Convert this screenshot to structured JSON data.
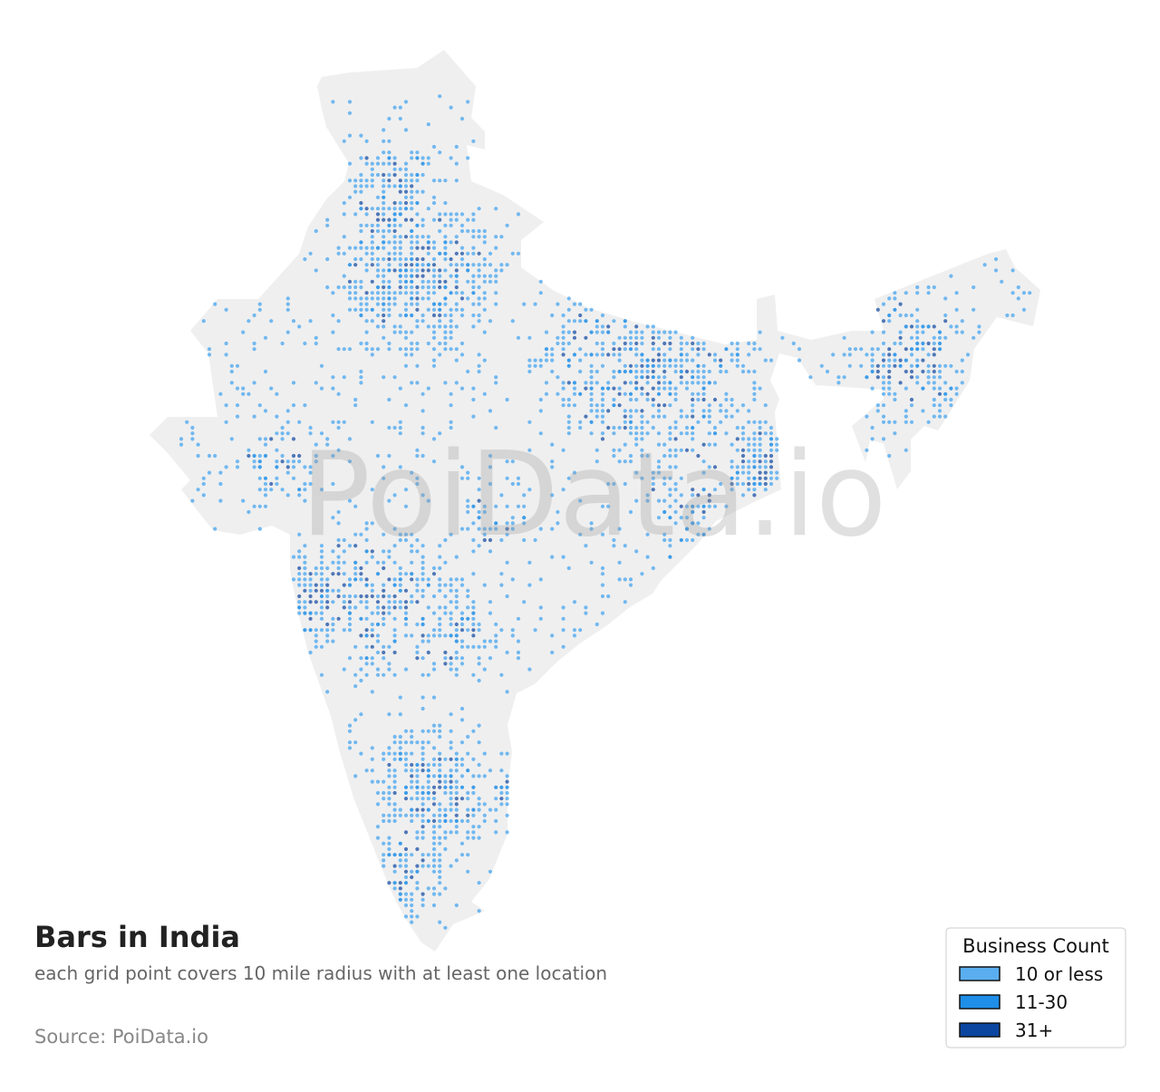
{
  "title": "Bars in India",
  "subtitle": "each grid point covers 10 mile radius with at least one location",
  "source": "Source: PoiData.io",
  "watermark": "PoiData.io",
  "legend": {
    "title": "Business Count",
    "items": [
      {
        "label": "10 or less",
        "color": "#5aaef0"
      },
      {
        "label": "11-30",
        "color": "#1e8ee8"
      },
      {
        "label": "31+",
        "color": "#0b45a0"
      }
    ]
  }
}
